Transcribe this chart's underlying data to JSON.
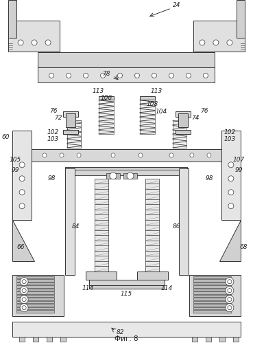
{
  "title": "Фиг. 8",
  "label_24": "24",
  "label_78": "78",
  "label_60": "60",
  "label_66": "66",
  "label_68": "68",
  "label_72": "72",
  "label_74": "74",
  "label_76_left": "76",
  "label_76_right": "76",
  "label_82": "82",
  "label_84": "84",
  "label_86": "86",
  "label_98_left": "98",
  "label_98_right": "98",
  "label_99_left": "99",
  "label_99_right": "99",
  "label_102_left": "102",
  "label_102_right": "102",
  "label_103_left": "103",
  "label_103_right": "103",
  "label_104": "104",
  "label_105": "105",
  "label_106": "106",
  "label_107": "107",
  "label_108": "108",
  "label_113_left": "113",
  "label_113_right": "113",
  "label_114_left": "114",
  "label_114_right": "114",
  "label_115": "115",
  "bg_color": "#ffffff",
  "line_color": "#333333",
  "fig_width": 3.69,
  "fig_height": 4.99,
  "dpi": 100
}
